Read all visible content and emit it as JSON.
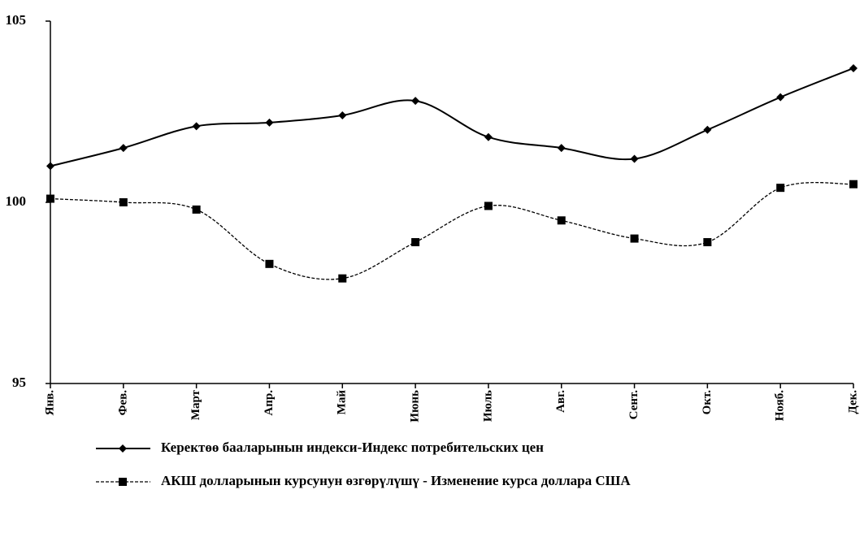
{
  "chart_data": {
    "type": "line",
    "categories": [
      "Янв.",
      "Фев.",
      "Март",
      "Апр.",
      "Май",
      "Июнь",
      "Июль",
      "Авг.",
      "Сент.",
      "Окт.",
      "Нояб.",
      "Дек."
    ],
    "series": [
      {
        "name": "Керектөө бааларынын индекси-Индекс потребительских цен",
        "color": "#000000",
        "marker": "diamond",
        "dash": "solid",
        "values": [
          101.0,
          101.5,
          102.1,
          102.2,
          102.4,
          102.8,
          101.8,
          101.5,
          101.2,
          102.0,
          102.9,
          103.7
        ]
      },
      {
        "name": "АКШ долларынын курсунун өзгөрүлүшү - Изменение курса доллара США",
        "color": "#000000",
        "marker": "square",
        "dash": "dashed",
        "values": [
          100.1,
          100.0,
          99.8,
          98.3,
          97.9,
          98.9,
          99.9,
          99.5,
          99.0,
          98.9,
          100.4,
          100.5
        ]
      }
    ],
    "ylim": [
      95,
      105
    ],
    "yticks": [
      95,
      100,
      105
    ],
    "grid": false,
    "legend": "bottom"
  }
}
